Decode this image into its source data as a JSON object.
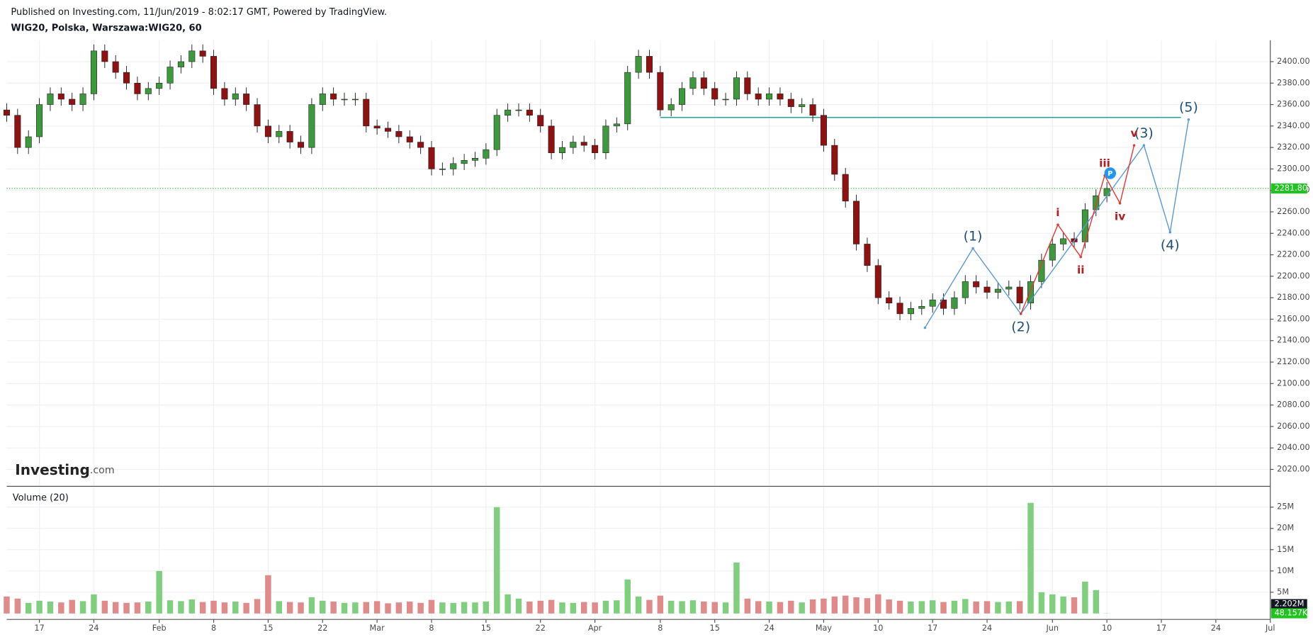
{
  "header": {
    "published": "Published on Investing.com, 11/Jun/2019 - 8:02:17 GMT, Powered by TradingView.",
    "symbol": "WIG20, Polska, Warszawa:WIG20, 60"
  },
  "chart_data": {
    "type": "candlestick",
    "logo": "Investing",
    "logo_suffix": ".com",
    "volume_title": "Volume (20)",
    "up_color": "#3c9a3c",
    "down_color": "#8f1111",
    "volume_up_color": "#7fcf7f",
    "volume_down_color": "#e08a8a",
    "grid": true,
    "x": [
      0,
      1,
      2,
      3,
      4,
      5,
      6,
      7,
      8,
      9,
      10,
      11,
      12,
      13,
      14,
      15,
      16,
      17,
      18,
      19,
      20,
      21,
      22,
      23,
      24,
      25,
      26,
      27,
      28,
      29,
      30,
      31,
      32,
      33,
      34,
      35,
      36,
      37,
      38,
      39,
      40,
      41,
      42,
      43,
      44,
      45,
      46,
      47,
      48,
      49,
      50,
      51,
      52,
      53,
      54,
      55,
      56,
      57,
      58,
      59,
      60,
      61,
      62,
      63,
      64,
      65,
      66,
      67,
      68,
      69,
      70,
      71,
      72,
      73,
      74,
      75,
      76,
      77,
      78,
      79,
      80,
      81,
      82,
      83,
      84,
      85,
      86,
      87,
      88,
      89,
      90,
      91,
      92,
      93,
      94,
      95,
      96,
      97,
      98,
      99,
      100,
      101
    ],
    "open": [
      2355,
      2350,
      2320,
      2330,
      2360,
      2370,
      2365,
      2360,
      2370,
      2410,
      2400,
      2390,
      2380,
      2370,
      2375,
      2380,
      2395,
      2400,
      2410,
      2405,
      2375,
      2365,
      2370,
      2360,
      2340,
      2330,
      2335,
      2325,
      2320,
      2360,
      2370,
      2365,
      2365,
      2365,
      2340,
      2338,
      2335,
      2330,
      2325,
      2320,
      2300,
      2300,
      2305,
      2308,
      2310,
      2318,
      2350,
      2355,
      2355,
      2350,
      2340,
      2315,
      2320,
      2325,
      2322,
      2315,
      2340,
      2342,
      2390,
      2405,
      2390,
      2355,
      2360,
      2375,
      2385,
      2375,
      2365,
      2365,
      2385,
      2370,
      2365,
      2370,
      2365,
      2358,
      2360,
      2350,
      2322,
      2295,
      2270,
      2230,
      2210,
      2180,
      2175,
      2165,
      2170,
      2172,
      2178,
      2170,
      2180,
      2195,
      2190,
      2185,
      2188,
      2190,
      2175,
      2195,
      2215,
      2230,
      2235,
      2232,
      2262,
      2275
    ],
    "high": [
      2361,
      2356,
      2336,
      2366,
      2376,
      2376,
      2371,
      2376,
      2416,
      2416,
      2406,
      2396,
      2386,
      2381,
      2386,
      2401,
      2406,
      2416,
      2416,
      2411,
      2381,
      2376,
      2376,
      2366,
      2346,
      2341,
      2341,
      2331,
      2366,
      2376,
      2376,
      2371,
      2371,
      2371,
      2346,
      2344,
      2341,
      2336,
      2331,
      2326,
      2306,
      2311,
      2314,
      2316,
      2324,
      2356,
      2361,
      2361,
      2361,
      2356,
      2346,
      2326,
      2331,
      2331,
      2328,
      2346,
      2348,
      2396,
      2411,
      2411,
      2396,
      2366,
      2381,
      2391,
      2391,
      2381,
      2371,
      2391,
      2391,
      2376,
      2376,
      2376,
      2371,
      2366,
      2366,
      2356,
      2328,
      2301,
      2276,
      2236,
      2216,
      2186,
      2181,
      2176,
      2178,
      2184,
      2184,
      2186,
      2201,
      2201,
      2196,
      2194,
      2196,
      2196,
      2201,
      2221,
      2236,
      2241,
      2241,
      2268,
      2281,
      2287.8
    ],
    "low": [
      2344,
      2314,
      2314,
      2324,
      2354,
      2359,
      2354,
      2354,
      2364,
      2394,
      2384,
      2374,
      2364,
      2364,
      2369,
      2374,
      2389,
      2394,
      2399,
      2369,
      2359,
      2359,
      2354,
      2334,
      2324,
      2324,
      2319,
      2314,
      2314,
      2354,
      2359,
      2359,
      2359,
      2334,
      2332,
      2329,
      2324,
      2319,
      2314,
      2294,
      2294,
      2294,
      2299,
      2302,
      2304,
      2312,
      2344,
      2349,
      2344,
      2334,
      2309,
      2309,
      2314,
      2316,
      2309,
      2309,
      2334,
      2336,
      2384,
      2384,
      2349,
      2349,
      2354,
      2369,
      2369,
      2359,
      2359,
      2359,
      2364,
      2359,
      2359,
      2359,
      2352,
      2352,
      2344,
      2316,
      2289,
      2264,
      2224,
      2204,
      2174,
      2169,
      2159,
      2159,
      2164,
      2166,
      2164,
      2164,
      2174,
      2184,
      2179,
      2179,
      2182,
      2169,
      2169,
      2189,
      2209,
      2224,
      2226,
      2226,
      2256,
      2269
    ],
    "close": [
      2350,
      2320,
      2330,
      2360,
      2370,
      2365,
      2360,
      2370,
      2410,
      2400,
      2390,
      2380,
      2370,
      2375,
      2380,
      2395,
      2400,
      2410,
      2405,
      2375,
      2365,
      2370,
      2360,
      2340,
      2330,
      2335,
      2325,
      2320,
      2360,
      2370,
      2365,
      2365,
      2365,
      2340,
      2338,
      2335,
      2330,
      2325,
      2320,
      2300,
      2300,
      2305,
      2308,
      2310,
      2318,
      2350,
      2355,
      2355,
      2350,
      2340,
      2315,
      2320,
      2325,
      2322,
      2315,
      2340,
      2342,
      2390,
      2405,
      2390,
      2355,
      2360,
      2375,
      2385,
      2375,
      2365,
      2365,
      2385,
      2370,
      2365,
      2370,
      2365,
      2358,
      2360,
      2350,
      2322,
      2295,
      2270,
      2230,
      2210,
      2180,
      2175,
      2165,
      2170,
      2172,
      2178,
      2170,
      2180,
      2195,
      2190,
      2185,
      2188,
      2190,
      2175,
      2195,
      2215,
      2230,
      2235,
      2232,
      2262,
      2275,
      2281.8
    ],
    "volume": [
      4000000,
      3500000,
      2500000,
      3000000,
      2800000,
      2600000,
      3200000,
      2900000,
      4500000,
      3000000,
      2700000,
      2500000,
      2600000,
      2800000,
      10000000,
      3100000,
      2900000,
      3300000,
      2700000,
      3000000,
      2600000,
      2800000,
      2500000,
      3400000,
      9000000,
      2900000,
      2700000,
      2600000,
      3800000,
      3000000,
      2800000,
      2500000,
      2600000,
      2700000,
      2900000,
      2400000,
      2600000,
      2800000,
      2500000,
      3200000,
      2600000,
      2500000,
      2700000,
      2600000,
      2800000,
      25000000,
      4500000,
      3500000,
      2800000,
      3000000,
      3200000,
      2600000,
      2500000,
      2700000,
      2600000,
      3000000,
      3100000,
      8000000,
      4000000,
      3200000,
      4200000,
      3000000,
      2900000,
      3100000,
      2800000,
      2700000,
      2600000,
      12000000,
      3500000,
      2900000,
      2800000,
      2700000,
      3000000,
      2600000,
      3300000,
      3500000,
      4000000,
      4200000,
      3800000,
      3600000,
      4500000,
      3300000,
      3000000,
      2800000,
      2900000,
      3100000,
      2700000,
      3000000,
      3400000,
      2800000,
      2900000,
      2700000,
      2800000,
      2900000,
      26000000,
      5000000,
      4500000,
      4000000,
      3800000,
      7500000,
      5500000,
      48157
    ],
    "xlim": [
      0,
      116
    ],
    "xticks": [
      {
        "value": 3,
        "label": "17"
      },
      {
        "value": 8,
        "label": "24"
      },
      {
        "value": 14,
        "label": "Feb"
      },
      {
        "value": 19,
        "label": "8"
      },
      {
        "value": 24,
        "label": "15"
      },
      {
        "value": 29,
        "label": "22"
      },
      {
        "value": 34,
        "label": "Mar"
      },
      {
        "value": 39,
        "label": "8"
      },
      {
        "value": 44,
        "label": "15"
      },
      {
        "value": 49,
        "label": "22"
      },
      {
        "value": 54,
        "label": "Apr"
      },
      {
        "value": 60,
        "label": "8"
      },
      {
        "value": 65,
        "label": "15"
      },
      {
        "value": 70,
        "label": "24"
      },
      {
        "value": 75,
        "label": "May"
      },
      {
        "value": 80,
        "label": "10"
      },
      {
        "value": 85,
        "label": "17"
      },
      {
        "value": 90,
        "label": "24"
      },
      {
        "value": 96,
        "label": "Jun"
      },
      {
        "value": 101,
        "label": "10"
      },
      {
        "value": 106,
        "label": "17"
      },
      {
        "value": 111,
        "label": "24"
      },
      {
        "value": 116,
        "label": "Jul"
      }
    ],
    "ylim": [
      2005,
      2420
    ],
    "yticks": [
      {
        "value": 2020,
        "label": "2020.00"
      },
      {
        "value": 2040,
        "label": "2040.00"
      },
      {
        "value": 2060,
        "label": "2060.00"
      },
      {
        "value": 2080,
        "label": "2080.00"
      },
      {
        "value": 2100,
        "label": "2100.00"
      },
      {
        "value": 2120,
        "label": "2120.00"
      },
      {
        "value": 2140,
        "label": "2140.00"
      },
      {
        "value": 2160,
        "label": "2160.00"
      },
      {
        "value": 2180,
        "label": "2180.00"
      },
      {
        "value": 2200,
        "label": "2200.00"
      },
      {
        "value": 2220,
        "label": "2220.00"
      },
      {
        "value": 2240,
        "label": "2240.00"
      },
      {
        "value": 2260,
        "label": "2260.00"
      },
      {
        "value": 2280,
        "label": "2280.00"
      },
      {
        "value": 2300,
        "label": "2300.00"
      },
      {
        "value": 2320,
        "label": "2320.00"
      },
      {
        "value": 2340,
        "label": "2340.00"
      },
      {
        "value": 2360,
        "label": "2360.00"
      },
      {
        "value": 2380,
        "label": "2380.00"
      },
      {
        "value": 2400,
        "label": "2400.00"
      }
    ],
    "y2lim": [
      -1000000,
      29500000
    ],
    "y2ticks": [
      {
        "value": 5000000,
        "label": "5M"
      },
      {
        "value": 10000000,
        "label": "10M"
      },
      {
        "value": 15000000,
        "label": "15M"
      },
      {
        "value": 20000000,
        "label": "20M"
      },
      {
        "value": 25000000,
        "label": "25M"
      }
    ],
    "last_price": {
      "value": 2281.8,
      "label": "2281.80",
      "color": "#1fc41f"
    },
    "volume_ma_last": {
      "value": 2202000,
      "label": "2.202M",
      "color": "#131722"
    },
    "last_volume": {
      "value": 48157,
      "label": "48.157K",
      "color": "#1fc41f"
    },
    "level": {
      "y": 2348,
      "x": [
        60,
        107.8
      ],
      "color": "#26a69a"
    },
    "waves": [
      {
        "color": "#5b9bd5",
        "label_color": "#1f4e79",
        "points": [
          {
            "x": 84.3,
            "y": 2152
          },
          {
            "x": 88.7,
            "y": 2226,
            "label": "(1)"
          },
          {
            "x": 93.1,
            "y": 2165,
            "label": "(2)"
          },
          {
            "x": 104.4,
            "y": 2322,
            "label": "(3)"
          },
          {
            "x": 106.8,
            "y": 2241,
            "label": "(4)"
          },
          {
            "x": 108.5,
            "y": 2346,
            "label": "(5)"
          }
        ]
      },
      {
        "color": "#e53935",
        "label_color": "#b71c1c",
        "points": [
          {
            "x": 93.1,
            "y": 2165
          },
          {
            "x": 96.5,
            "y": 2248,
            "label": "i"
          },
          {
            "x": 98.6,
            "y": 2218,
            "label": "ii"
          },
          {
            "x": 100.8,
            "y": 2294,
            "label": "iii"
          },
          {
            "x": 102.2,
            "y": 2268,
            "label": "iv"
          },
          {
            "x": 103.5,
            "y": 2322,
            "label": "v"
          }
        ]
      }
    ],
    "flag": {
      "x": 101.3,
      "y": 2296,
      "label": "P",
      "color": "#2196f3"
    }
  }
}
